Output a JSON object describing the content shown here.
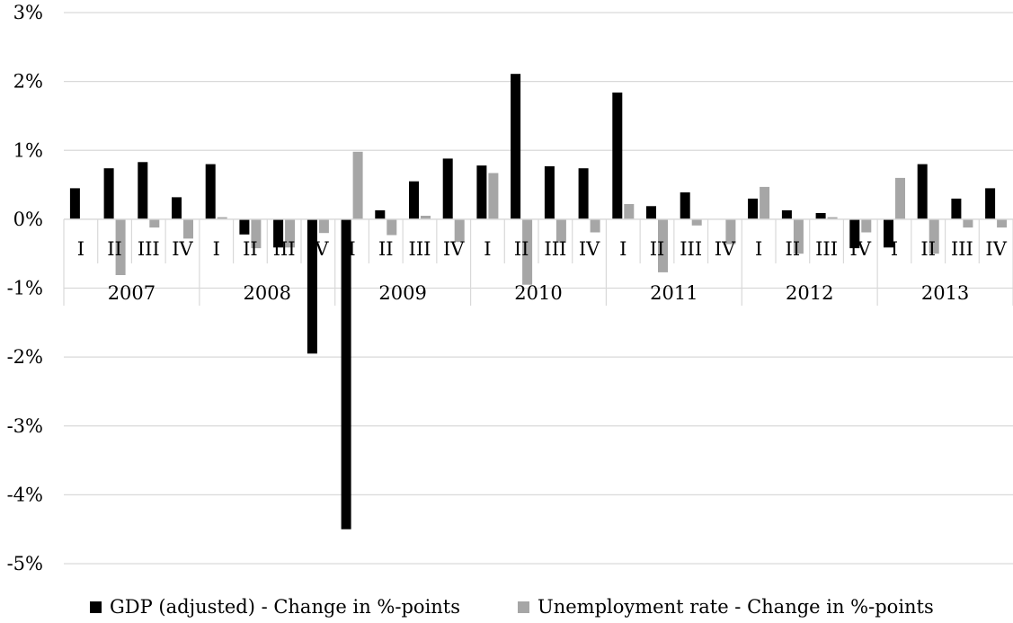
{
  "chart_data": {
    "type": "bar",
    "title": "",
    "xlabel": "",
    "ylabel": "",
    "ylim": [
      -5,
      3
    ],
    "yticks": [
      {
        "value": 3,
        "label": "3%"
      },
      {
        "value": 2,
        "label": "2%"
      },
      {
        "value": 1,
        "label": "1%"
      },
      {
        "value": 0,
        "label": "0%"
      },
      {
        "value": -1,
        "label": "-1%"
      },
      {
        "value": -2,
        "label": "-2%"
      },
      {
        "value": -3,
        "label": "-3%"
      },
      {
        "value": -4,
        "label": "-4%"
      },
      {
        "value": -5,
        "label": "-5%"
      }
    ],
    "grid": true,
    "legend_position": "bottom",
    "years": [
      "2007",
      "2008",
      "2009",
      "2010",
      "2011",
      "2012",
      "2013"
    ],
    "quarters": [
      "I",
      "II",
      "III",
      "IV"
    ],
    "categories": [
      "2007 I",
      "2007 II",
      "2007 III",
      "2007 IV",
      "2008 I",
      "2008 II",
      "2008 III",
      "2008 IV",
      "2009 I",
      "2009 II",
      "2009 III",
      "2009 IV",
      "2010 I",
      "2010 II",
      "2010 III",
      "2010 IV",
      "2011 I",
      "2011 II",
      "2011 III",
      "2011 IV",
      "2012 I",
      "2012 II",
      "2012 III",
      "2012 IV",
      "2013 I",
      "2013 II",
      "2013 III",
      "2013 IV"
    ],
    "series": [
      {
        "name": "GDP (adjusted) - Change in %-points",
        "color": "#000000",
        "values": [
          0.45,
          0.74,
          0.83,
          0.32,
          0.8,
          -0.22,
          -0.41,
          -1.95,
          -4.5,
          0.13,
          0.55,
          0.88,
          0.78,
          2.11,
          0.77,
          0.74,
          1.84,
          0.19,
          0.39,
          0.0,
          0.3,
          0.13,
          0.09,
          -0.42,
          -0.41,
          0.8,
          0.3,
          0.45
        ]
      },
      {
        "name": "Unemployment rate - Change in %-points",
        "color": "#a6a6a6",
        "values": [
          0.0,
          -0.81,
          -0.12,
          -0.28,
          0.03,
          -0.42,
          -0.41,
          -0.2,
          0.98,
          -0.23,
          0.05,
          -0.33,
          0.67,
          -0.95,
          -0.34,
          -0.19,
          0.22,
          -0.77,
          -0.09,
          -0.36,
          0.47,
          -0.5,
          0.03,
          -0.19,
          0.6,
          -0.5,
          -0.12,
          -0.12
        ]
      }
    ]
  }
}
